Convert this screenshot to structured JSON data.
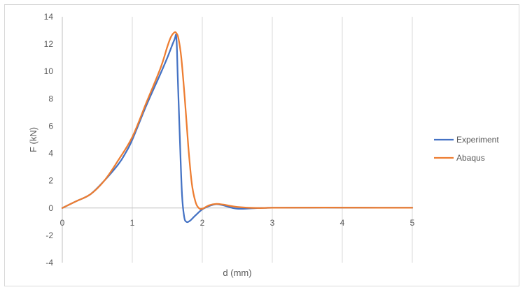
{
  "chart_data": {
    "type": "line",
    "xlabel": "d (mm)",
    "ylabel": "F (kN)",
    "xlim": [
      0,
      5
    ],
    "ylim": [
      -4,
      14
    ],
    "xticks": [
      0,
      1,
      2,
      3,
      4,
      5
    ],
    "yticks": [
      -4,
      -2,
      0,
      2,
      4,
      6,
      8,
      10,
      12,
      14
    ],
    "grid": "vertical",
    "legend_position": "right",
    "series": [
      {
        "name": "Experiment",
        "color": "#4472C4",
        "x": [
          0,
          0.2,
          0.4,
          0.6,
          0.8,
          0.9,
          1.0,
          1.2,
          1.4,
          1.5,
          1.6,
          1.63,
          1.65,
          1.68,
          1.71,
          1.74,
          1.77,
          1.82,
          1.9,
          2.0,
          2.1,
          2.2,
          2.3,
          2.5,
          2.8,
          3.0,
          3.5,
          4.0,
          4.5,
          5.0
        ],
        "y": [
          0,
          0.5,
          1.0,
          2.0,
          3.2,
          4.0,
          5.0,
          7.5,
          9.8,
          11.0,
          12.3,
          12.45,
          9.5,
          5.0,
          1.0,
          -0.6,
          -1.0,
          -0.95,
          -0.55,
          -0.1,
          0.15,
          0.28,
          0.2,
          -0.05,
          0.0,
          0.02,
          0.03,
          0.03,
          0.02,
          0.02
        ]
      },
      {
        "name": "Abaqus",
        "color": "#ED7D31",
        "x": [
          0,
          0.2,
          0.4,
          0.6,
          0.8,
          1.0,
          1.2,
          1.4,
          1.5,
          1.55,
          1.6,
          1.63,
          1.66,
          1.7,
          1.75,
          1.8,
          1.85,
          1.9,
          1.95,
          2.0,
          2.1,
          2.2,
          2.3,
          2.5,
          2.8,
          3.0,
          3.5,
          4.0,
          4.5,
          5.0
        ],
        "y": [
          0,
          0.5,
          1.0,
          2.0,
          3.5,
          5.2,
          7.7,
          10.2,
          11.8,
          12.5,
          12.85,
          12.8,
          12.4,
          11.0,
          8.0,
          4.5,
          1.8,
          0.5,
          0.0,
          -0.05,
          0.2,
          0.3,
          0.25,
          0.08,
          0.0,
          0.02,
          0.03,
          0.03,
          0.02,
          0.02
        ]
      }
    ]
  }
}
